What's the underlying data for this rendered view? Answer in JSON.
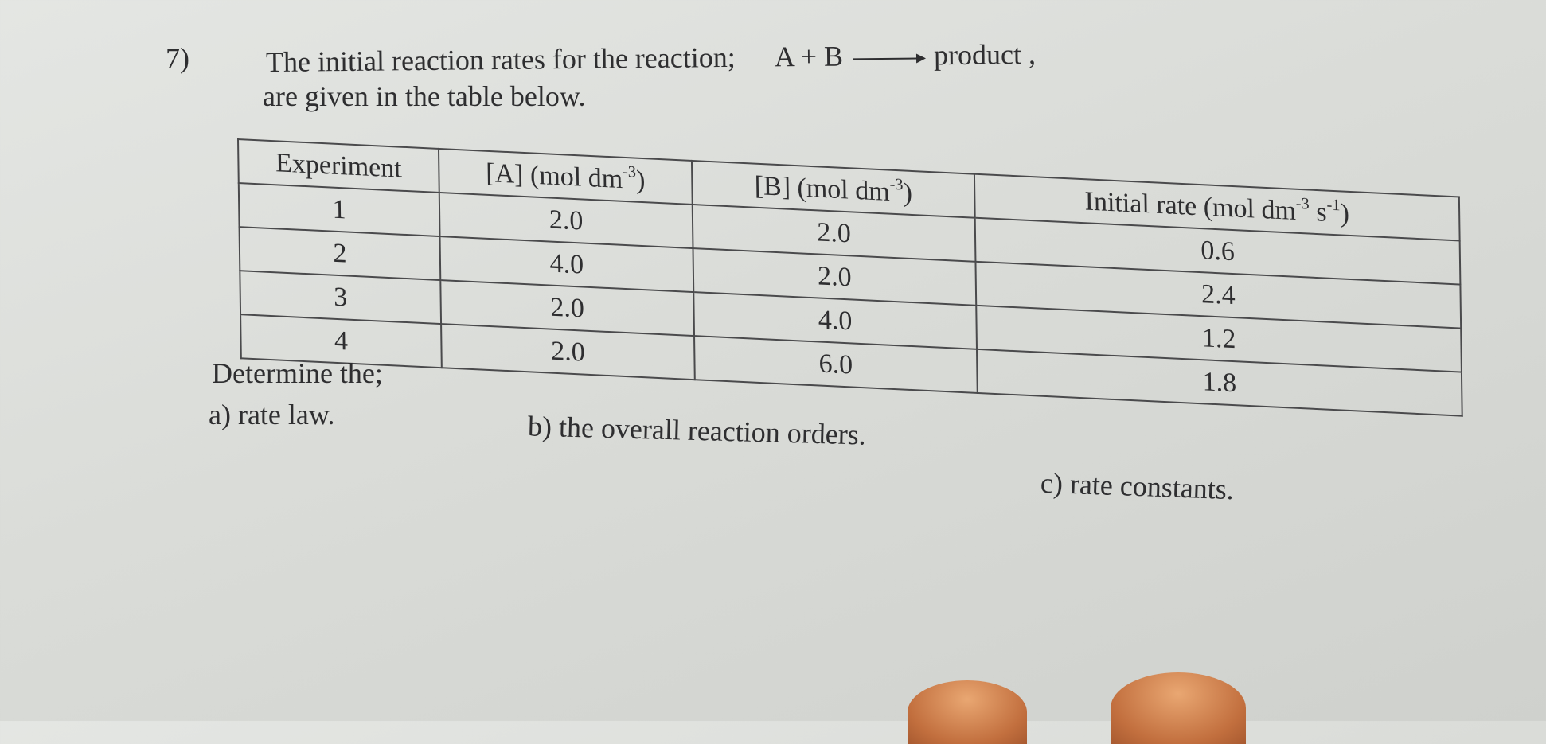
{
  "question": {
    "number": "7)",
    "line1_prefix": "The initial reaction rates for the reaction;",
    "reaction_lhs": "A + B",
    "reaction_rhs": "product ,",
    "line2": "are given in the table below."
  },
  "table": {
    "headers": [
      "Experiment",
      "[A] (mol dm",
      "[B] (mol dm",
      "Initial rate (mol dm"
    ],
    "header_units": {
      "conc_exp": "-3",
      "rate_exp1": "-3",
      "rate_s": " s",
      "rate_exp2": "-1"
    },
    "rows": [
      [
        "1",
        "2.0",
        "2.0",
        "0.6"
      ],
      [
        "2",
        "4.0",
        "2.0",
        "2.4"
      ],
      [
        "3",
        "2.0",
        "4.0",
        "1.2"
      ],
      [
        "4",
        "2.0",
        "6.0",
        "1.8"
      ]
    ]
  },
  "prompt": "Determine the;",
  "parts": {
    "a": "a)  rate law.",
    "b": "b) the overall reaction orders.",
    "c": "c)  rate constants."
  }
}
